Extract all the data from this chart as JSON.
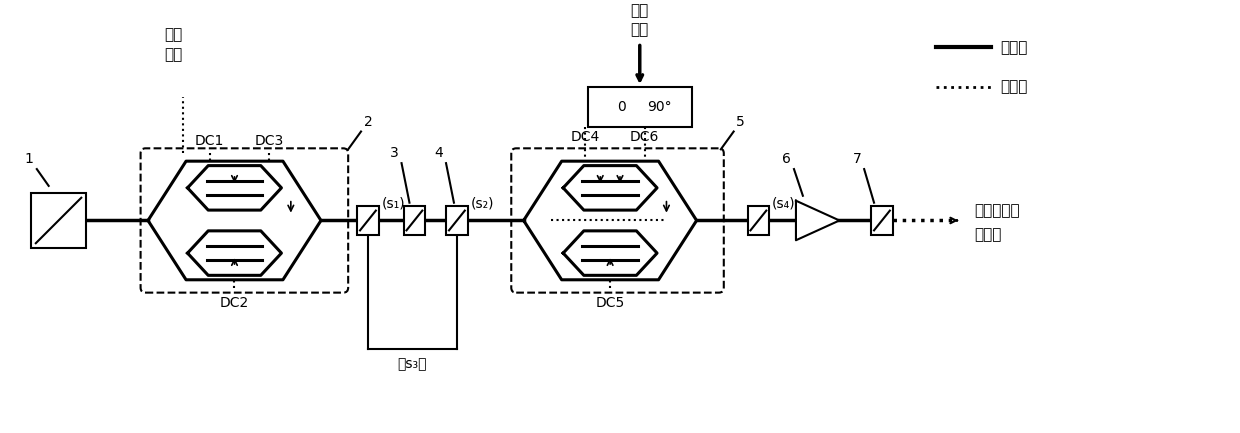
{
  "bg_color": "#ffffff",
  "fig_width": 12.4,
  "fig_height": 4.33,
  "legend_optical_label": "光信号",
  "legend_electrical_label": "电信号",
  "label_source_line1": "本振",
  "label_source_line2": "信号",
  "label_rf_line1": "射频",
  "label_rf_line2": "信号",
  "label_dc1": "DC1",
  "label_dc2": "DC2",
  "label_dc3": "DC3",
  "label_dc4": "DC4",
  "label_dc5": "DC5",
  "label_dc6": "DC6",
  "label_out_line1": "四倍频上转",
  "label_out_line2": "换信号",
  "label_1": "1",
  "label_2": "2",
  "label_3": "3",
  "label_4": "4",
  "label_5": "5",
  "label_6": "6",
  "label_7": "7",
  "label_phase_0": "0",
  "label_phase_90": "90°",
  "label_s1": "(s₁)",
  "label_s2": "(s₂)",
  "label_s3": "(s₃)",
  "label_s4": "(s₄)"
}
